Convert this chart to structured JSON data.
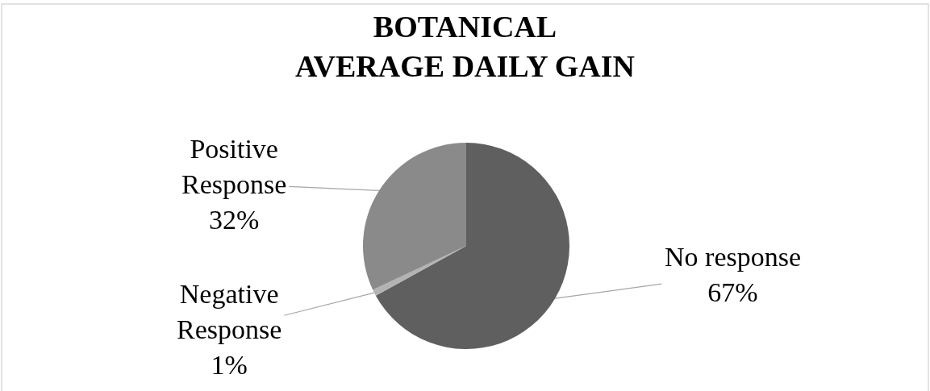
{
  "chart_data": {
    "type": "pie",
    "title": "BOTANICAL\nAVERAGE DAILY GAIN",
    "categories": [
      "No response",
      "Negative Response",
      "Positive Response"
    ],
    "values": [
      67,
      1,
      32
    ],
    "colors": [
      "#5f5f5f",
      "#b3b3b3",
      "#8a8a8a"
    ],
    "value_labels": [
      "67%",
      "1%",
      "32%"
    ],
    "legend": false
  }
}
